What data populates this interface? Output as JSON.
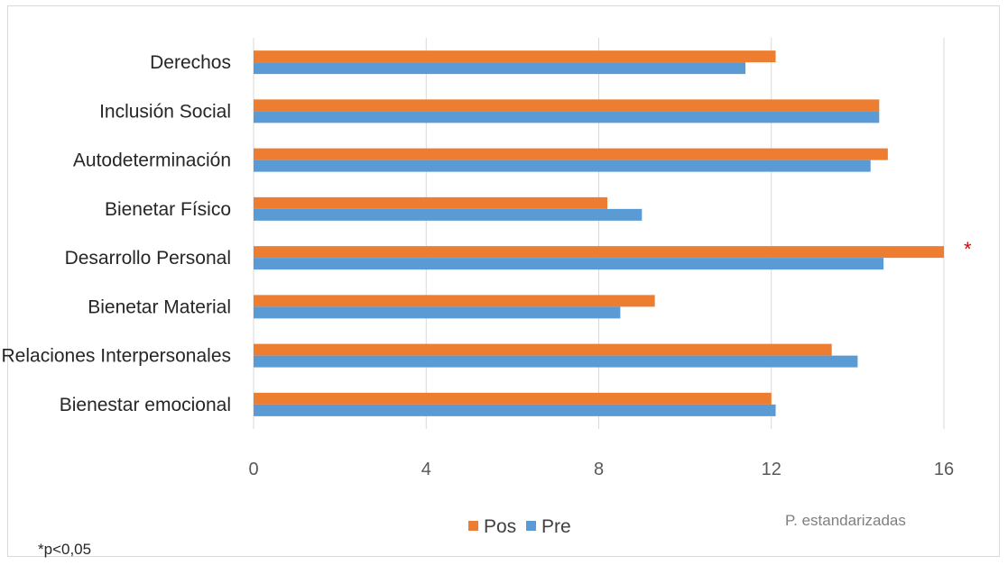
{
  "chart_data": {
    "type": "bar",
    "orientation": "horizontal",
    "categories": [
      "Derechos",
      "Inclusión Social",
      "Autodeterminación",
      "Bienetar Físico",
      "Desarrollo Personal",
      "Bienetar Material",
      "Relaciones Interpersonales",
      "Bienestar emocional"
    ],
    "series": [
      {
        "name": "Pos",
        "color": "#ED7D31",
        "values": [
          12.1,
          14.5,
          14.7,
          8.2,
          16.0,
          9.3,
          13.4,
          12.0
        ]
      },
      {
        "name": "Pre",
        "color": "#5B9BD5",
        "values": [
          11.4,
          14.5,
          14.3,
          9.0,
          14.6,
          8.5,
          14.0,
          12.1
        ]
      }
    ],
    "xlim": [
      0,
      16
    ],
    "xticks": [
      0,
      4,
      8,
      12,
      16
    ],
    "xlabel": "P. estandarizadas",
    "grid": true,
    "legend_position": "bottom",
    "significance_marker": {
      "category": "Desarrollo Personal",
      "symbol": "*",
      "color": "#E00000"
    },
    "footnote": "*p<0,05"
  }
}
